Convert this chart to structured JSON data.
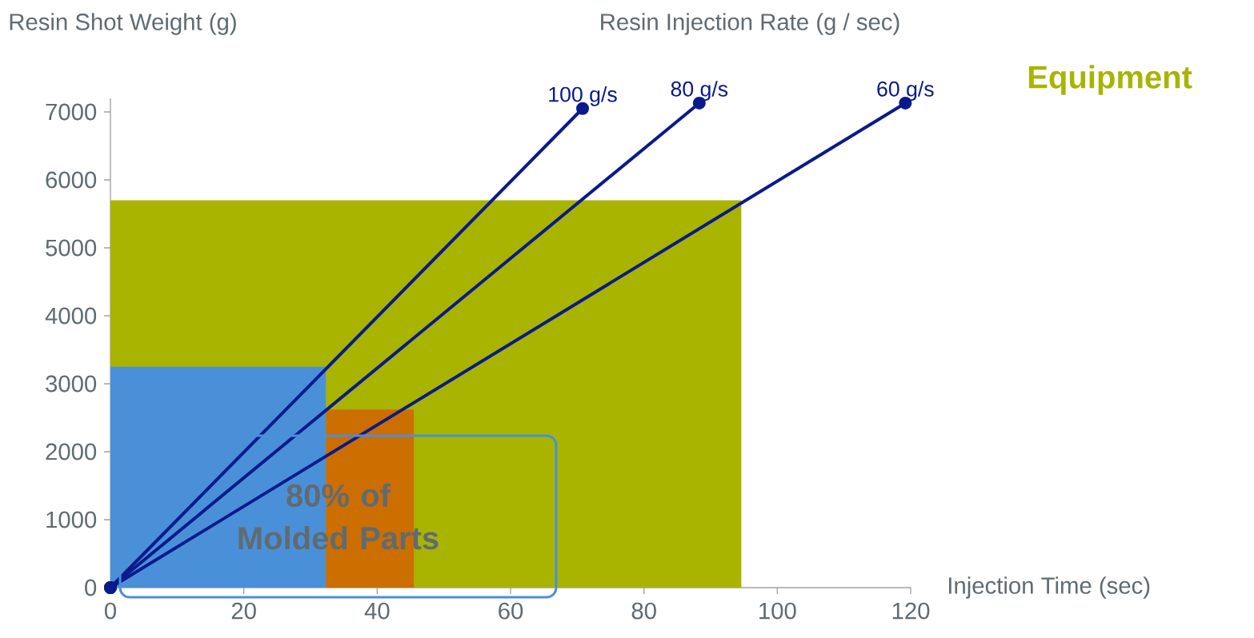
{
  "chart_data": {
    "type": "area",
    "ylabel": "Resin Shot Weight  (g)",
    "xlabel": "Injection Time (sec)",
    "annotations": [
      "Resin Injection Rate (g / sec)",
      "80% of Molded Parts"
    ],
    "xlim": [
      0,
      120
    ],
    "ylim": [
      0,
      7200
    ],
    "xticks": [
      0,
      20,
      40,
      60,
      80,
      100,
      120
    ],
    "yticks": [
      0,
      1000,
      2000,
      3000,
      4000,
      5000,
      6000,
      7000
    ],
    "grid": false,
    "series": [
      {
        "name": "Equipment",
        "color": "#a8b400",
        "x": [
          0,
          94.6
        ],
        "values": [
          5700,
          5700
        ]
      },
      {
        "color": "#4a90d9",
        "x": [
          0,
          32.3
        ],
        "values": [
          3250,
          3250
        ]
      },
      {
        "color": "#cc6e00",
        "x": [
          32.3,
          45.5
        ],
        "values": [
          2620,
          2620
        ]
      },
      {
        "type": "line",
        "name": "100 g/s",
        "color": "#0a1a8c",
        "marker": "circle",
        "x": [
          0,
          70.8
        ],
        "values": [
          0,
          7050
        ]
      },
      {
        "type": "line",
        "name": "80 g/s",
        "color": "#0a1a8c",
        "marker": "circle",
        "x": [
          0,
          88.3
        ],
        "values": [
          0,
          7130
        ]
      },
      {
        "type": "line",
        "name": "60 g/s",
        "color": "#0a1a8c",
        "marker": "circle",
        "x": [
          0,
          119.2
        ],
        "values": [
          0,
          7130
        ]
      }
    ]
  }
}
